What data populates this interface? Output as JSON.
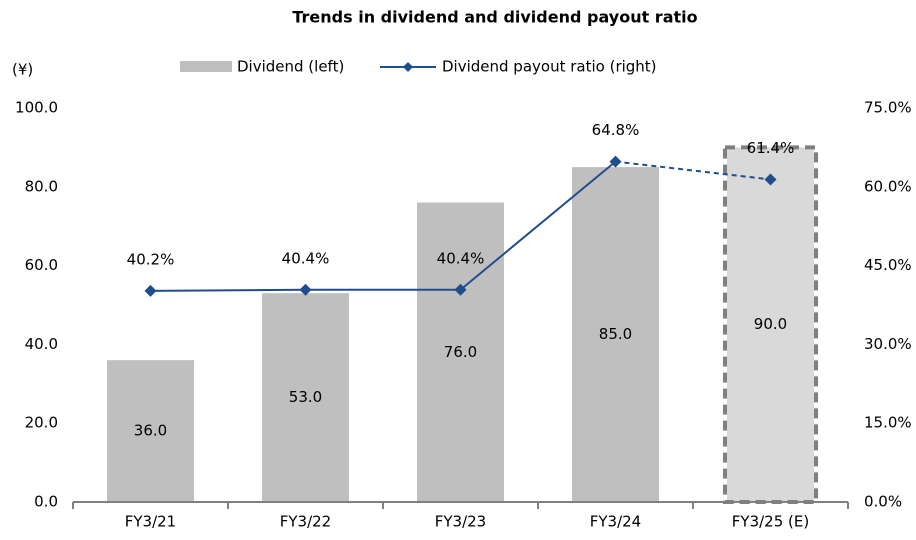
{
  "chart_data": {
    "type": "bar_line",
    "title": "Trends in dividend and dividend payout ratio",
    "y_label": "(¥)",
    "categories": [
      "FY3/21",
      "FY3/22",
      "FY3/23",
      "FY3/24",
      "FY3/25 (E)"
    ],
    "series": [
      {
        "name": "Dividend (left)",
        "type": "bar",
        "color": "#bfbfbf",
        "point_colors": [
          "#bfbfbf",
          "#bfbfbf",
          "#bfbfbf",
          "#bfbfbf",
          "#d9d9d9"
        ],
        "values": [
          36,
          53,
          76,
          85,
          90
        ],
        "value_labels": [
          "36.0",
          "53.0",
          "76.0",
          "85.0",
          "90.0"
        ]
      },
      {
        "name": "Dividend payout ratio (right)",
        "type": "line",
        "axis": "y2",
        "color": "#1f4e8c",
        "values": [
          40.2,
          40.4,
          40.4,
          64.8,
          61.4
        ],
        "value_labels": [
          "40.2%",
          "40.4%",
          "40.4%",
          "64.8%",
          "61.4%"
        ]
      }
    ],
    "dashed": [
      false,
      false,
      false,
      false,
      true
    ],
    "ylim": [
      0,
      100
    ],
    "yticks": [
      {
        "value": 0,
        "label": "0.0"
      },
      {
        "value": 20,
        "label": "20.0"
      },
      {
        "value": 40,
        "label": "40.0"
      },
      {
        "value": 60,
        "label": "60.0"
      },
      {
        "value": 80,
        "label": "80.0"
      },
      {
        "value": 100,
        "label": "100.0"
      }
    ],
    "y2lim": [
      0,
      75
    ],
    "y2ticks": [
      {
        "value": 0,
        "label": "0.0%"
      },
      {
        "value": 15,
        "label": "15.0%"
      },
      {
        "value": 30,
        "label": "30.0%"
      },
      {
        "value": 45,
        "label": "45.0%"
      },
      {
        "value": 60,
        "label": "60.0%"
      },
      {
        "value": 75,
        "label": "75.0%"
      }
    ],
    "grid": false,
    "legend": "top"
  }
}
